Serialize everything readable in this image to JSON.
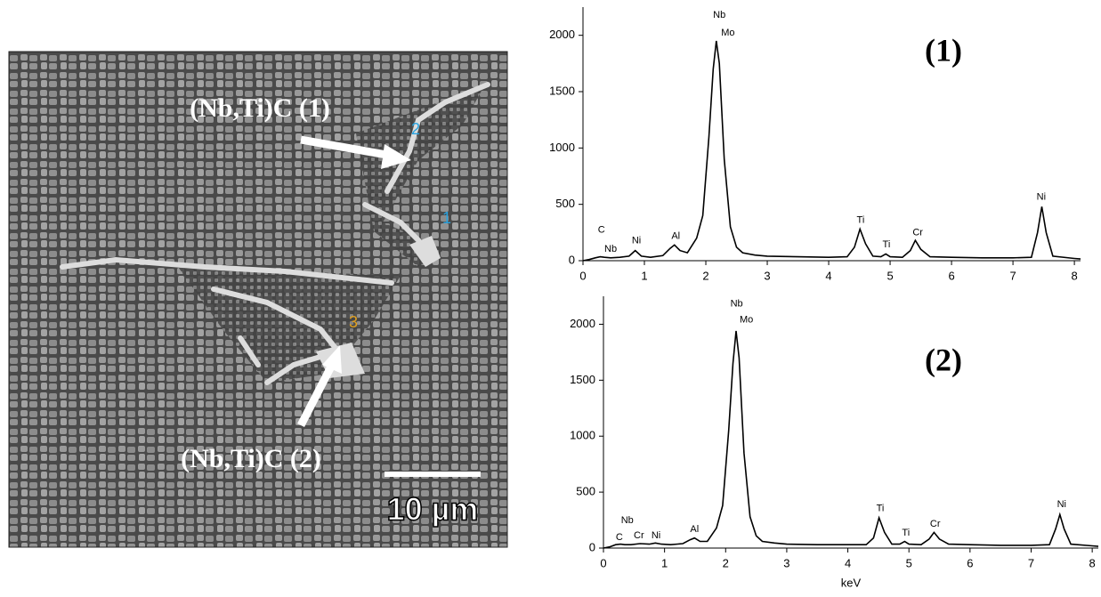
{
  "micrograph": {
    "labels": [
      "(Nb,Ti)C (1)",
      "(Nb,Ti)C (2)"
    ],
    "markers": [
      "1",
      "2",
      "3"
    ],
    "scale_bar": "10 µm"
  },
  "chart_data": [
    {
      "type": "line",
      "title": "(1)",
      "color": "#000000",
      "x": [
        0,
        0.1,
        0.2,
        0.28,
        0.35,
        0.45,
        0.6,
        0.75,
        0.85,
        0.95,
        1.1,
        1.3,
        1.42,
        1.49,
        1.58,
        1.7,
        1.85,
        1.95,
        2.05,
        2.12,
        2.17,
        2.22,
        2.3,
        2.4,
        2.5,
        2.6,
        2.8,
        3.0,
        3.5,
        4.0,
        4.3,
        4.42,
        4.51,
        4.6,
        4.72,
        4.85,
        4.93,
        5.0,
        5.2,
        5.33,
        5.41,
        5.5,
        5.65,
        6.0,
        6.5,
        7.0,
        7.3,
        7.4,
        7.47,
        7.54,
        7.65,
        8.0,
        8.1
      ],
      "values": [
        0,
        10,
        25,
        35,
        30,
        25,
        30,
        40,
        90,
        40,
        30,
        45,
        110,
        140,
        90,
        70,
        200,
        400,
        1100,
        1700,
        1950,
        1750,
        900,
        300,
        120,
        70,
        50,
        40,
        35,
        30,
        35,
        120,
        280,
        150,
        40,
        35,
        60,
        35,
        30,
        90,
        180,
        100,
        35,
        30,
        25,
        25,
        30,
        250,
        480,
        250,
        40,
        20,
        15
      ],
      "xlim": [
        0,
        8.1
      ],
      "ylim": [
        0,
        2250
      ],
      "xticks": [
        0,
        1,
        2,
        3,
        4,
        5,
        6,
        7,
        8
      ],
      "yticks": [
        0,
        500,
        1000,
        1500,
        2000
      ],
      "annotations": [
        {
          "text": "C",
          "x": 0.3,
          "y": 270
        },
        {
          "text": "Nb",
          "x": 0.45,
          "y": 100
        },
        {
          "text": "Ni",
          "x": 0.87,
          "y": 175
        },
        {
          "text": "Al",
          "x": 1.51,
          "y": 215
        },
        {
          "text": "Nb",
          "x": 2.22,
          "y": 2180
        },
        {
          "text": "Mo",
          "x": 2.36,
          "y": 2020
        },
        {
          "text": "Ti",
          "x": 4.52,
          "y": 357
        },
        {
          "text": "Ti",
          "x": 4.94,
          "y": 143
        },
        {
          "text": "Cr",
          "x": 5.45,
          "y": 246
        },
        {
          "text": "Ni",
          "x": 7.46,
          "y": 563
        }
      ]
    },
    {
      "type": "line",
      "title": "(2)",
      "color": "#000000",
      "xlabel": "keV",
      "x": [
        0,
        0.1,
        0.2,
        0.28,
        0.35,
        0.45,
        0.6,
        0.75,
        0.85,
        0.95,
        1.1,
        1.3,
        1.42,
        1.49,
        1.58,
        1.7,
        1.85,
        1.95,
        2.05,
        2.12,
        2.17,
        2.22,
        2.3,
        2.4,
        2.5,
        2.6,
        2.8,
        3.0,
        3.5,
        4.0,
        4.3,
        4.42,
        4.51,
        4.6,
        4.72,
        4.85,
        4.93,
        5.0,
        5.2,
        5.33,
        5.41,
        5.5,
        5.65,
        6.0,
        6.5,
        7.0,
        7.3,
        7.4,
        7.47,
        7.54,
        7.65,
        8.0,
        8.1
      ],
      "values": [
        0,
        10,
        30,
        35,
        30,
        30,
        40,
        35,
        45,
        35,
        30,
        40,
        75,
        90,
        60,
        60,
        180,
        380,
        1050,
        1650,
        1940,
        1700,
        850,
        280,
        110,
        60,
        45,
        35,
        30,
        30,
        30,
        90,
        270,
        140,
        35,
        35,
        60,
        35,
        30,
        80,
        140,
        80,
        35,
        30,
        25,
        25,
        30,
        170,
        300,
        170,
        35,
        20,
        15
      ],
      "xlim": [
        0,
        8.1
      ],
      "ylim": [
        0,
        2250
      ],
      "xticks": [
        0,
        1,
        2,
        3,
        4,
        5,
        6,
        7,
        8
      ],
      "yticks": [
        0,
        500,
        1000,
        1500,
        2000
      ],
      "annotations": [
        {
          "text": "C",
          "x": 0.26,
          "y": 95
        },
        {
          "text": "Nb",
          "x": 0.39,
          "y": 245
        },
        {
          "text": "Cr",
          "x": 0.58,
          "y": 110
        },
        {
          "text": "Ni",
          "x": 0.86,
          "y": 110
        },
        {
          "text": "Al",
          "x": 1.49,
          "y": 165
        },
        {
          "text": "Nb",
          "x": 2.18,
          "y": 2180
        },
        {
          "text": "Mo",
          "x": 2.34,
          "y": 2040
        },
        {
          "text": "Ti",
          "x": 4.53,
          "y": 355
        },
        {
          "text": "Ti",
          "x": 4.95,
          "y": 135
        },
        {
          "text": "Cr",
          "x": 5.43,
          "y": 215
        },
        {
          "text": "Ni",
          "x": 7.5,
          "y": 390
        }
      ]
    }
  ]
}
